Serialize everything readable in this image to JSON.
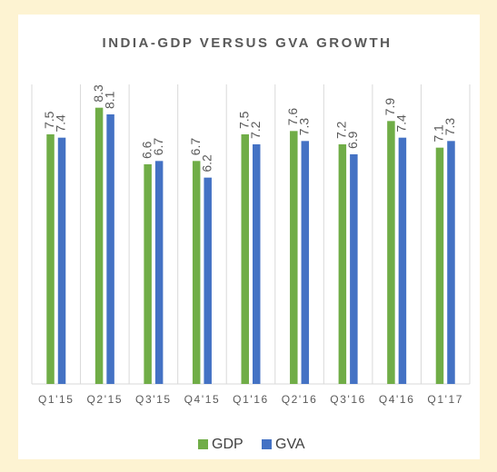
{
  "chart_data": {
    "type": "bar",
    "title": "INDIA-GDP VERSUS GVA GROWTH",
    "categories": [
      "Q1'15",
      "Q2'15",
      "Q3'15",
      "Q4'15",
      "Q1'16",
      "Q2'16",
      "Q3'16",
      "Q4'16",
      "Q1'17"
    ],
    "series": [
      {
        "name": "GDP",
        "color": "#70ad47",
        "values": [
          7.5,
          8.3,
          6.6,
          6.7,
          7.5,
          7.6,
          7.2,
          7.9,
          7.1
        ]
      },
      {
        "name": "GVA",
        "color": "#4472c4",
        "values": [
          7.4,
          8.1,
          6.7,
          6.2,
          7.2,
          7.3,
          6.9,
          7.4,
          7.3
        ]
      }
    ],
    "ylim": [
      0,
      9
    ],
    "legend": "bottom"
  }
}
